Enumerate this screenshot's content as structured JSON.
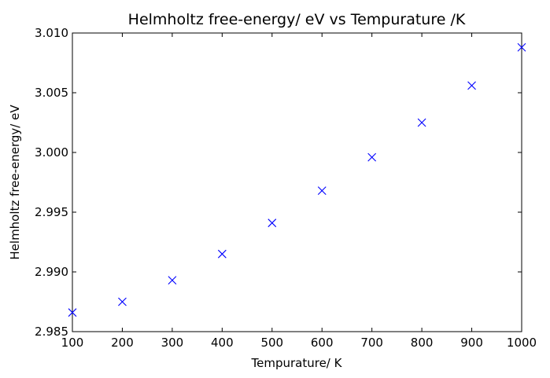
{
  "chart_data": {
    "type": "scatter",
    "title": "Helmholtz free-energy/ eV vs Tempurature /K",
    "xlabel": "Tempurature/ K",
    "ylabel": "Helmholtz free-energy/ eV",
    "xlim": [
      100,
      1000
    ],
    "ylim": [
      2.985,
      3.01
    ],
    "x_ticks": [
      100,
      200,
      300,
      400,
      500,
      600,
      700,
      800,
      900,
      1000
    ],
    "x_tick_labels": [
      "100",
      "200",
      "300",
      "400",
      "500",
      "600",
      "700",
      "800",
      "900",
      "1000"
    ],
    "y_ticks": [
      2.985,
      2.99,
      2.995,
      3.0,
      3.005,
      3.01
    ],
    "y_tick_labels": [
      "2.985",
      "2.990",
      "2.995",
      "3.000",
      "3.005",
      "3.010"
    ],
    "grid": false,
    "marker": "x",
    "marker_color": "#0000ff",
    "series": [
      {
        "x": [
          100,
          200,
          300,
          400,
          500,
          600,
          700,
          800,
          900,
          1000
        ],
        "y": [
          2.9866,
          2.9875,
          2.9893,
          2.9915,
          2.9941,
          2.9968,
          2.9996,
          3.0025,
          3.0056,
          3.0088
        ]
      }
    ]
  }
}
